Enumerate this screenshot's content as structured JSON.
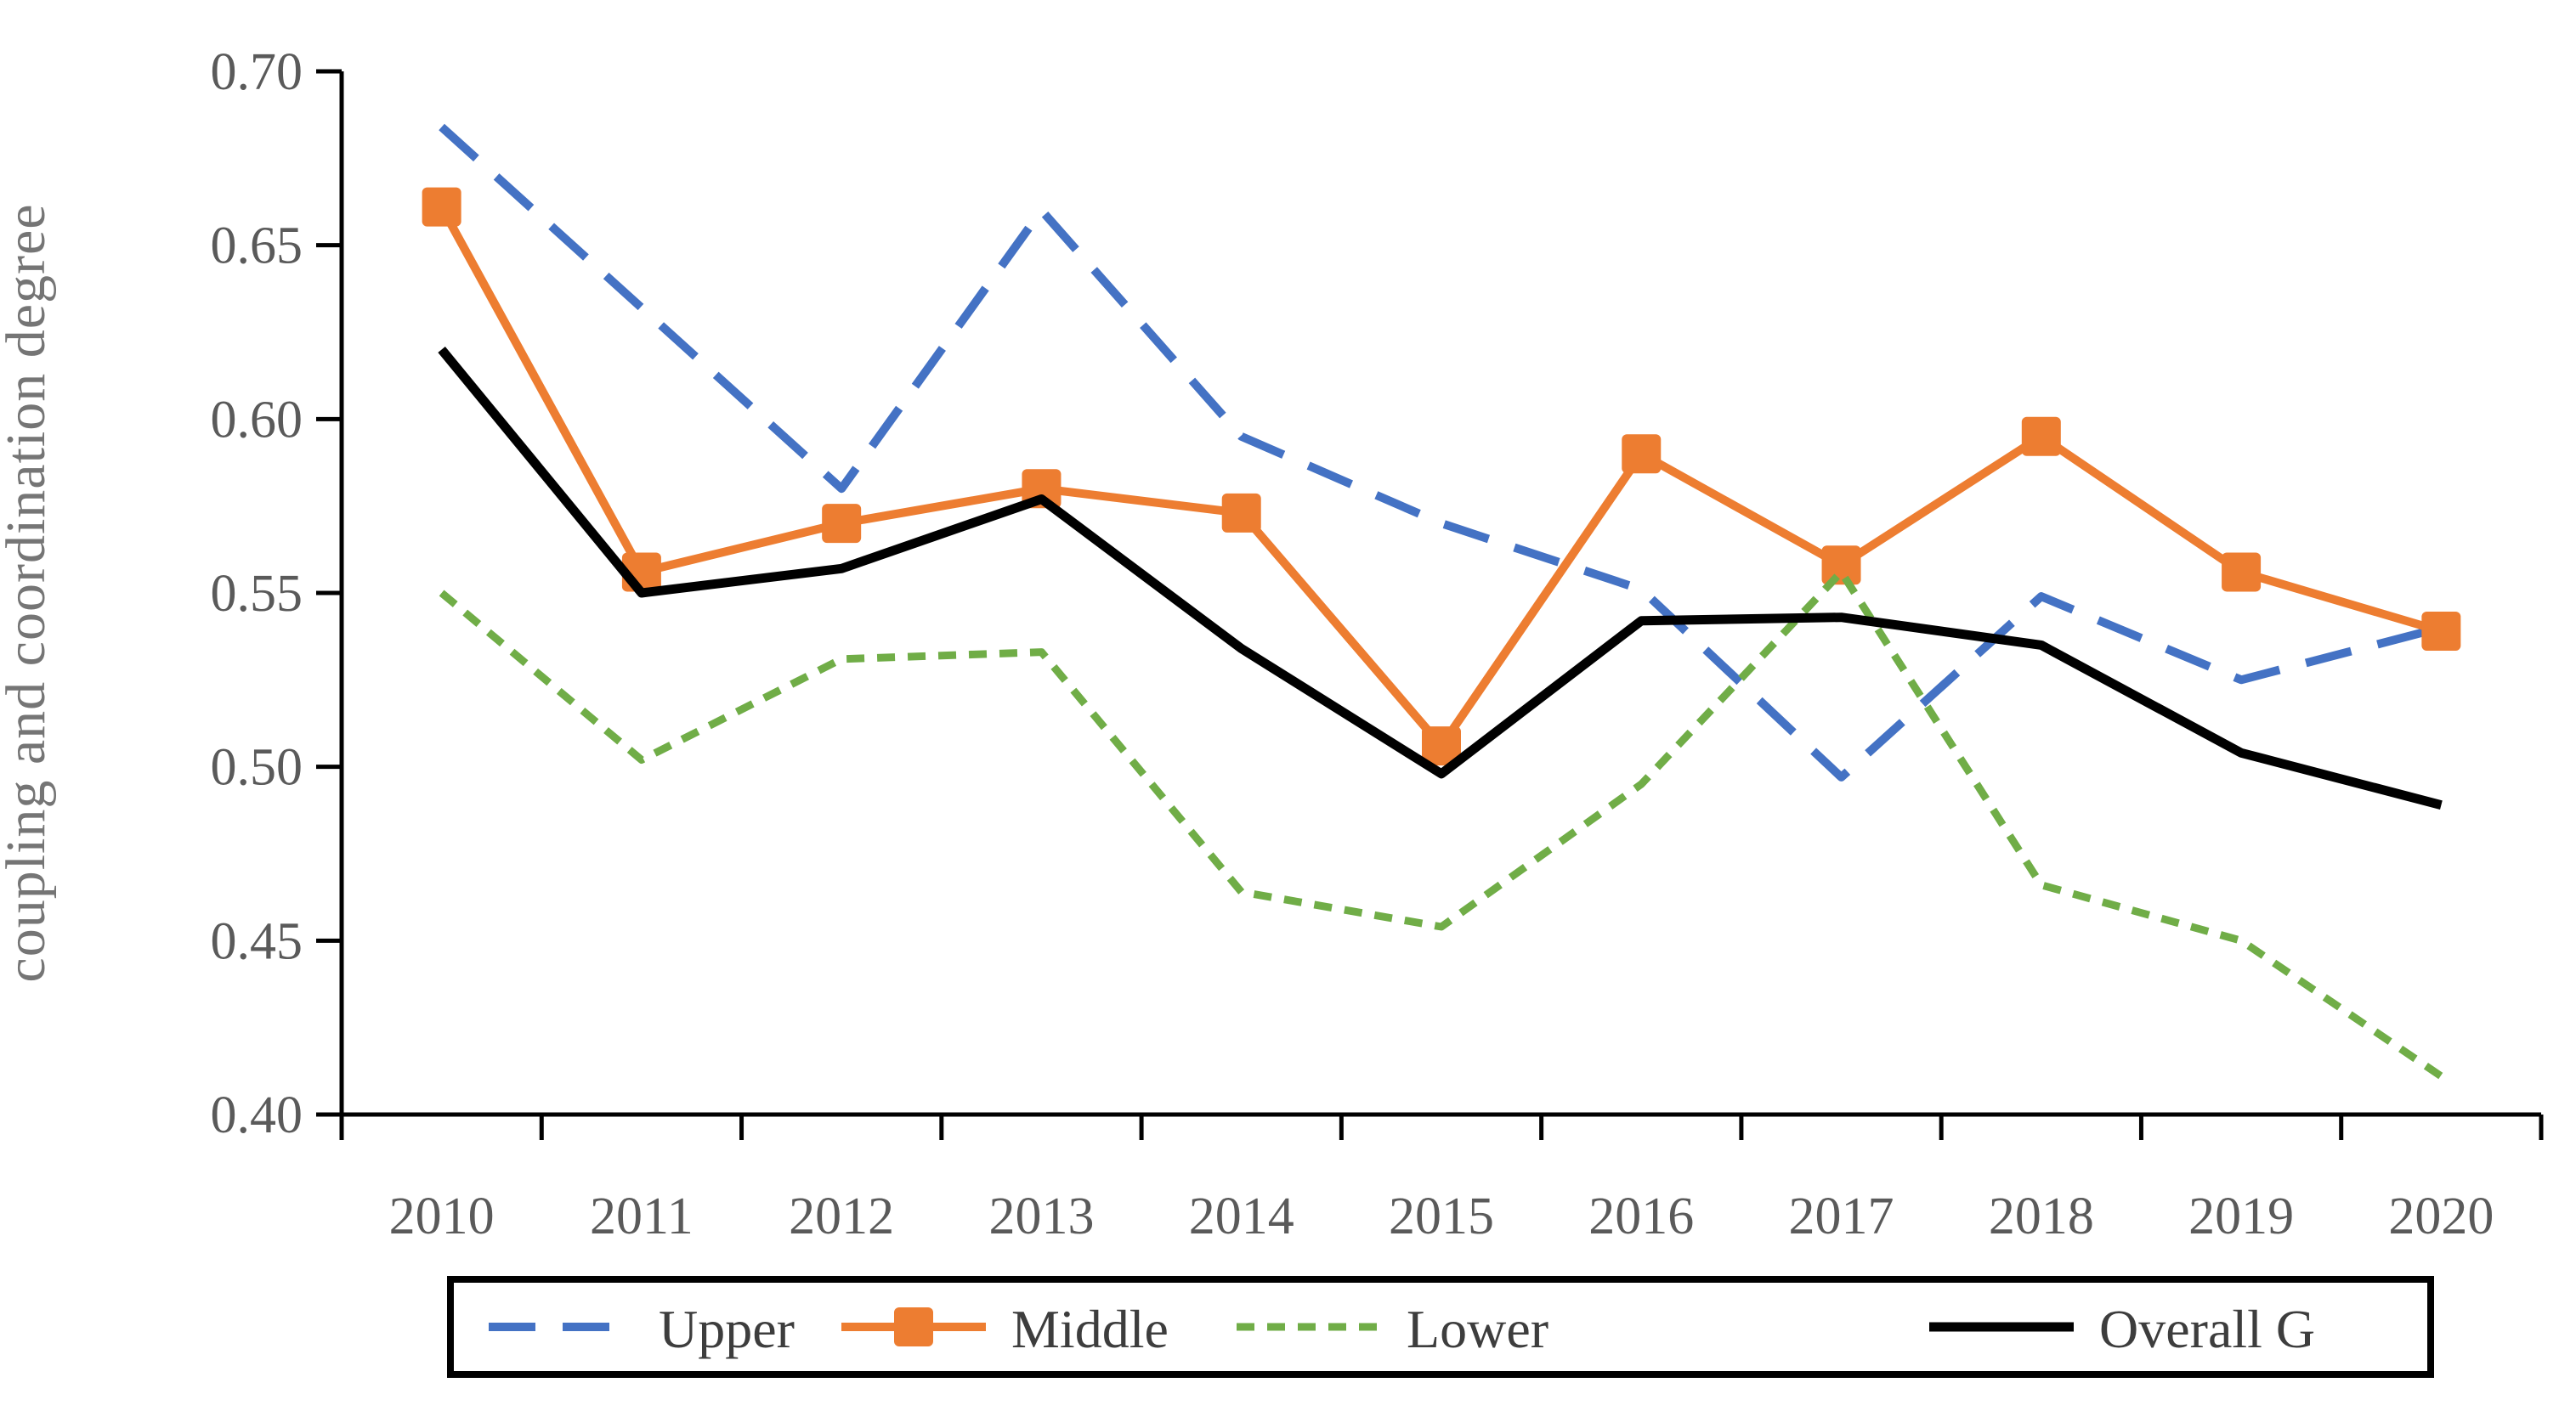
{
  "chart_data": {
    "type": "line",
    "title": "",
    "xlabel": "",
    "ylabel": "coupling and coordination degree",
    "x": [
      "2010",
      "2011",
      "2012",
      "2013",
      "2014",
      "2015",
      "2016",
      "2017",
      "2018",
      "2019",
      "2020"
    ],
    "ylim": [
      0.4,
      0.7
    ],
    "ytick_step": 0.05,
    "ytick_labels": [
      "0.40",
      "0.45",
      "0.50",
      "0.55",
      "0.60",
      "0.65",
      "0.70"
    ],
    "grid": "off",
    "legend_position": "bottom",
    "series": [
      {
        "name": "Upper",
        "color": "#4472C4",
        "line_style": "dashed",
        "marker": "none",
        "values": [
          0.684,
          0.632,
          0.58,
          0.66,
          0.595,
          0.57,
          0.551,
          0.497,
          0.549,
          0.525,
          0.54
        ]
      },
      {
        "name": "Middle",
        "color": "#ED7D31",
        "line_style": "solid",
        "marker": "square",
        "values": [
          0.661,
          0.556,
          0.57,
          0.58,
          0.573,
          0.506,
          0.59,
          0.558,
          0.595,
          0.556,
          0.539
        ]
      },
      {
        "name": "Lower",
        "color": "#70AD47",
        "line_style": "dotted",
        "marker": "none",
        "values": [
          0.55,
          0.502,
          0.531,
          0.533,
          0.464,
          0.454,
          0.495,
          0.556,
          0.466,
          0.45,
          0.411
        ]
      },
      {
        "name": "Overall G",
        "color": "#000000",
        "line_style": "solid",
        "marker": "none",
        "values": [
          0.62,
          0.55,
          0.557,
          0.577,
          0.534,
          0.498,
          0.542,
          0.543,
          0.535,
          0.504,
          0.489
        ]
      }
    ],
    "axis_color": "#000000"
  }
}
